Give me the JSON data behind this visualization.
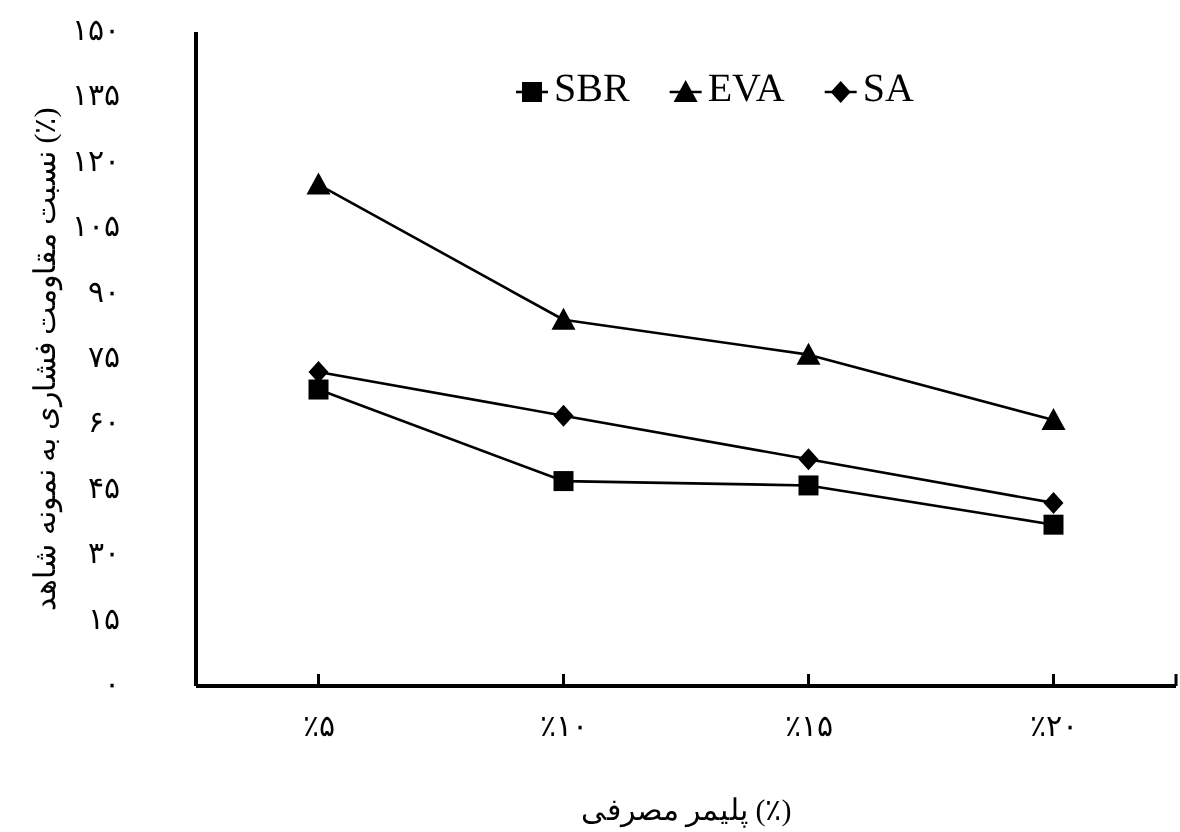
{
  "chart_data": {
    "type": "line",
    "ylabel": "نسبت مقاومت فشاری به نمونه شاهد (٪)",
    "xlabel": "پلیمر مصرفی (٪)",
    "categories": [
      "٪۵",
      "٪۱۰",
      "٪۱۵",
      "٪۲۰"
    ],
    "series": [
      {
        "name": "SBR",
        "color": "#000000",
        "marker": "square",
        "values": [
          68,
          47,
          46,
          37
        ]
      },
      {
        "name": "EVA",
        "color": "#000000",
        "marker": "triangle",
        "values": [
          115,
          84,
          76,
          61
        ]
      },
      {
        "name": "SA",
        "color": "#000000",
        "marker": "diamond",
        "values": [
          72,
          62,
          52,
          42
        ]
      }
    ],
    "ylim": [
      0,
      150
    ],
    "yticks": [
      {
        "value": 0,
        "label": "۰"
      },
      {
        "value": 15,
        "label": "۱۵"
      },
      {
        "value": 30,
        "label": "۳۰"
      },
      {
        "value": 45,
        "label": "۴۵"
      },
      {
        "value": 60,
        "label": "۶۰"
      },
      {
        "value": 75,
        "label": "۷۵"
      },
      {
        "value": 90,
        "label": "۹۰"
      },
      {
        "value": 105,
        "label": "۱۰۵"
      },
      {
        "value": 120,
        "label": "۱۲۰"
      },
      {
        "value": 135,
        "label": "۱۳۵"
      },
      {
        "value": 150,
        "label": "۱۵۰"
      }
    ],
    "legend": "top",
    "grid": false
  }
}
